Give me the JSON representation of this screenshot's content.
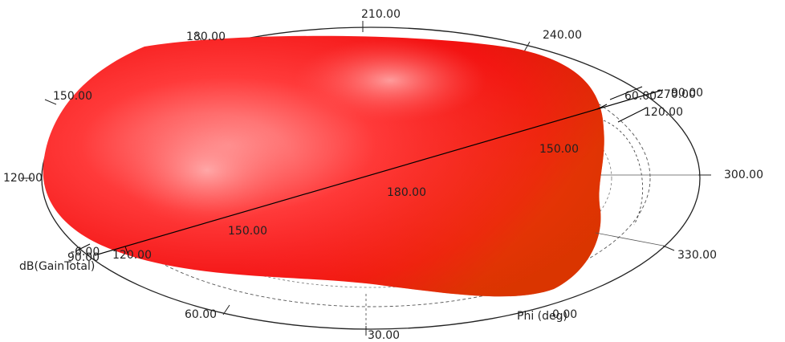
{
  "phi_ticks": [
    "0.00",
    "30.00",
    "60.00",
    "90.00",
    "120.00",
    "150.00",
    "180.00",
    "210.00",
    "240.00",
    "270.00",
    "300.00",
    "330.00"
  ],
  "theta_ticks": {
    "near_origin": [
      "-6.00",
      "90.00",
      "120.00"
    ],
    "near_far_end": [
      "60.00",
      "90.00",
      "120.00"
    ],
    "along_axis": [
      "150.00",
      "180.00",
      "150.00"
    ]
  },
  "axis_labels": {
    "gain": "dB(GainTotal)",
    "phi": "Phi (deg)"
  },
  "colors": {
    "pattern_main": "#ff2020",
    "pattern_highlight": "#ff8f8f",
    "pattern_shadow": "#c81800",
    "pattern_edge": "#e84a00",
    "ring": "#222222",
    "axis_line": "#000000"
  }
}
